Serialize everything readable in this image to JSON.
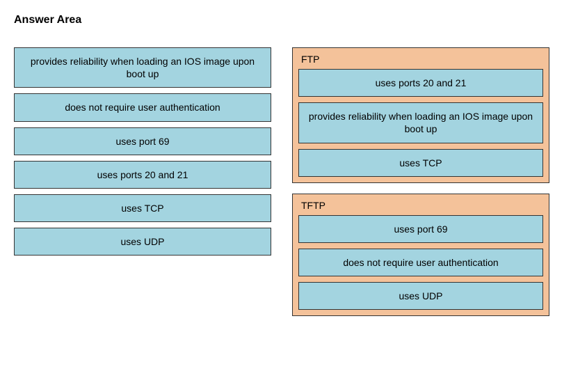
{
  "title": "Answer Area",
  "colors": {
    "item_bg": "#a3d4e0",
    "zone_bg": "#f4c29a",
    "border": "#333333",
    "page_bg": "#ffffff"
  },
  "source_items": [
    "provides reliability when loading an IOS image upon boot up",
    "does not require user authentication",
    "uses port 69",
    "uses ports 20 and 21",
    "uses TCP",
    "uses UDP"
  ],
  "drop_zones": [
    {
      "label": "FTP",
      "items": [
        "uses ports 20 and 21",
        "provides reliability when loading an IOS image upon boot up",
        "uses TCP"
      ]
    },
    {
      "label": "TFTP",
      "items": [
        "uses port 69",
        "does not require user authentication",
        "uses UDP"
      ]
    }
  ]
}
